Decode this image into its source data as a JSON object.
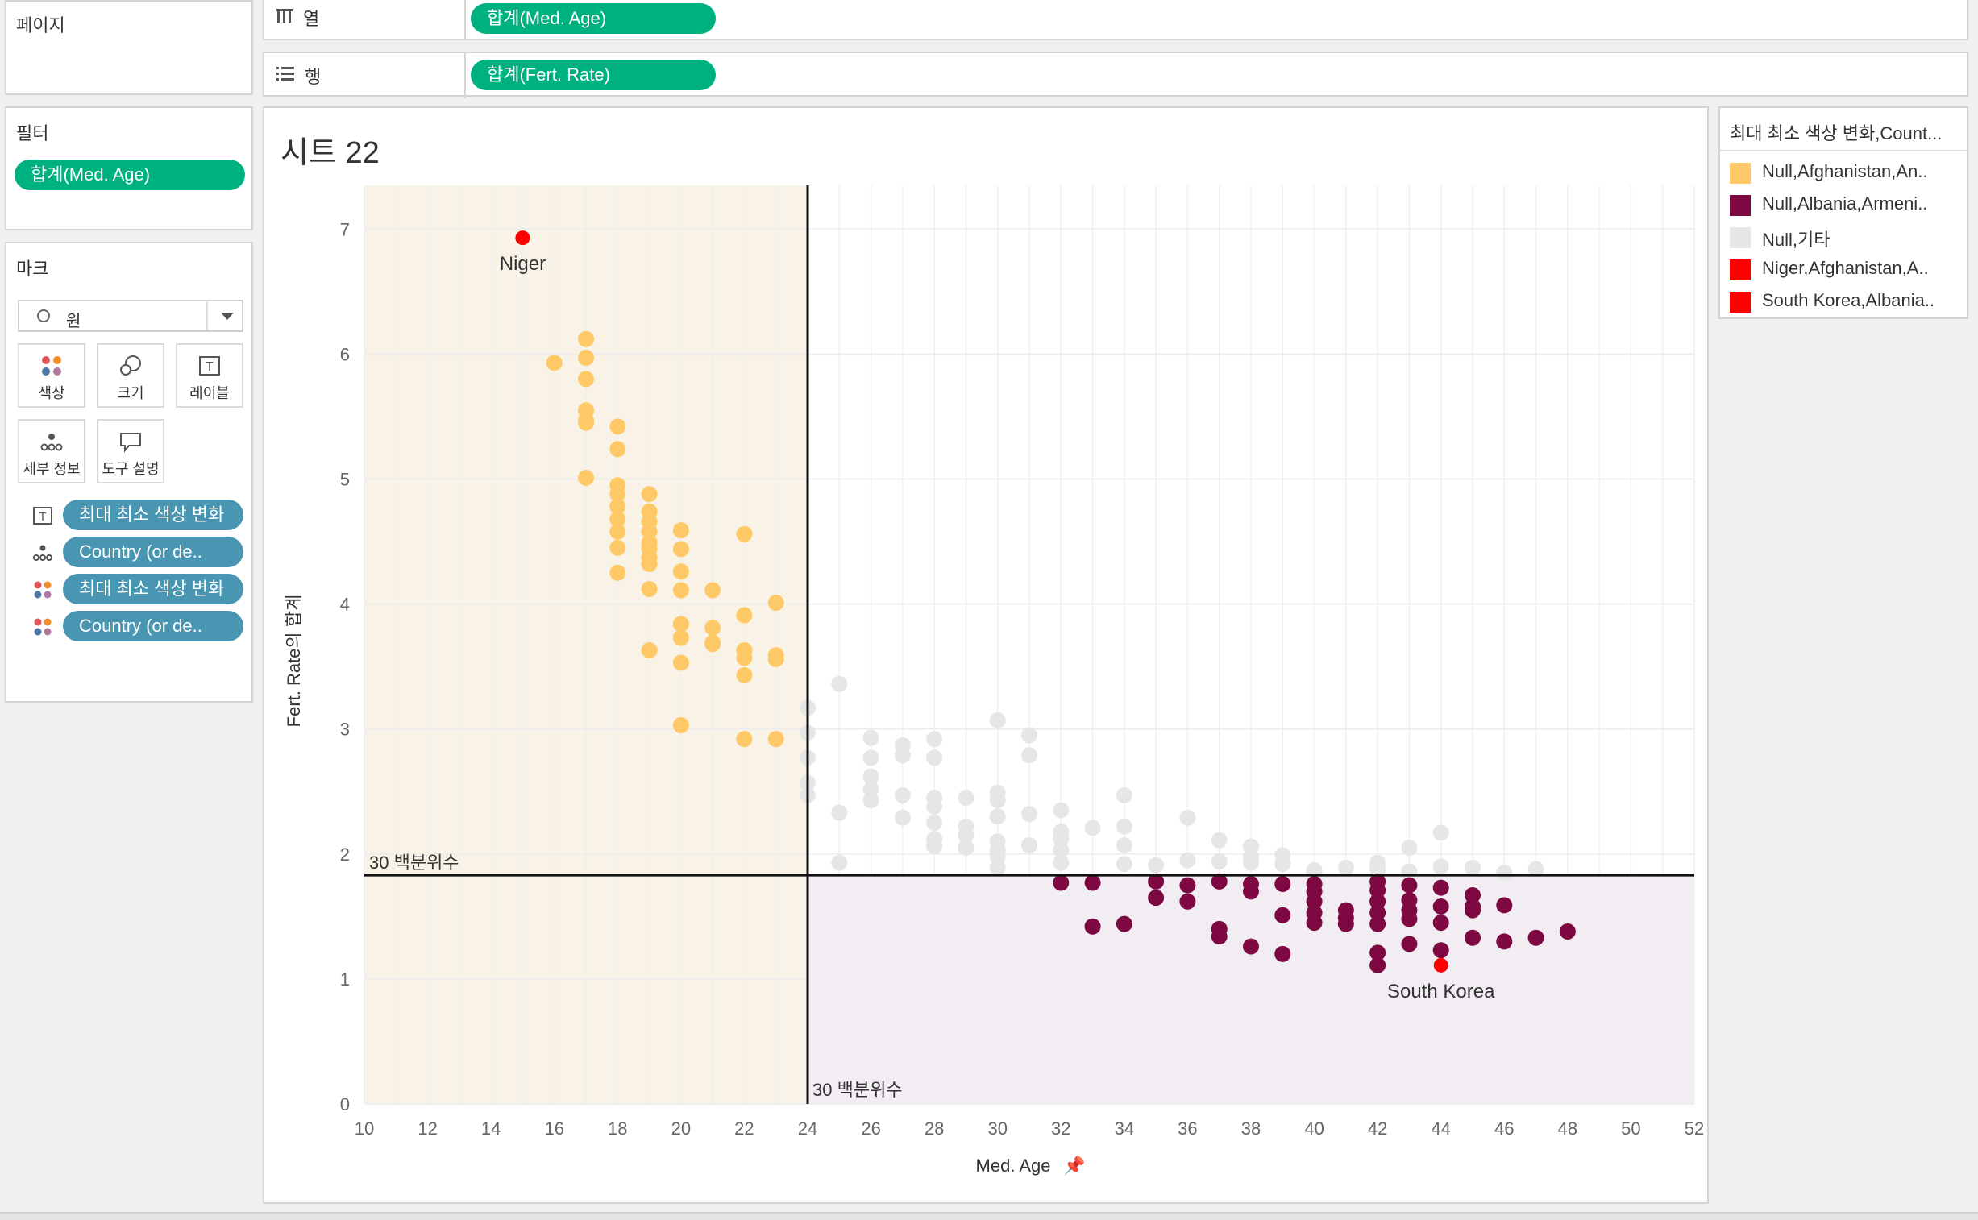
{
  "panels": {
    "pages": "페이지",
    "filters": "필터",
    "marks": "마크"
  },
  "shelves": {
    "columns_label": "열",
    "rows_label": "행",
    "columns_pill": "합계(Med. Age)",
    "rows_pill": "합계(Fert. Rate)"
  },
  "filter_pill": "합계(Med. Age)",
  "marks": {
    "type_label": "원",
    "buttons": {
      "color": "색상",
      "size": "크기",
      "label": "레이블",
      "detail": "세부 정보",
      "tooltip": "도구 설명"
    },
    "fields": [
      {
        "icon": "label-icon",
        "text": "최대 최소 색상 변화"
      },
      {
        "icon": "detail-icon",
        "text": "Country (or de.."
      },
      {
        "icon": "color-icon",
        "text": "최대 최소 색상 변화"
      },
      {
        "icon": "color-icon",
        "text": "Country (or de.."
      }
    ]
  },
  "sheet_title": "시트 22",
  "legend": {
    "title": "최대 최소 색상 변화,Count...",
    "items": [
      {
        "label": "Null,Afghanistan,An..",
        "color": "#fec966"
      },
      {
        "label": "Null,Albania,Armeni..",
        "color": "#7e0842"
      },
      {
        "label": "Null,기타",
        "color": "#e6e6e6"
      },
      {
        "label": "Niger,Afghanistan,A..",
        "color": "#ff0000"
      },
      {
        "label": "South Korea,Albania..",
        "color": "#ff0000"
      }
    ]
  },
  "chart_data": {
    "type": "scatter",
    "xlabel": "Med. Age",
    "ylabel": "Fert. Rate의 합계",
    "xlim": [
      10,
      52
    ],
    "ylim": [
      0,
      7
    ],
    "x_ticks": [
      10,
      12,
      14,
      16,
      18,
      20,
      22,
      24,
      26,
      28,
      30,
      32,
      34,
      36,
      38,
      40,
      42,
      44,
      46,
      48,
      50,
      52
    ],
    "y_ticks": [
      0,
      1,
      2,
      3,
      4,
      5,
      6,
      7
    ],
    "reference_lines": [
      {
        "axis": "x",
        "value": 24,
        "label": "30 백분위수"
      },
      {
        "axis": "y",
        "value": 1.83,
        "label": "30 백분위수"
      }
    ],
    "shaded_regions": [
      {
        "x": [
          10,
          24
        ],
        "y": [
          0,
          7.35
        ],
        "color": "#f8f3e6"
      },
      {
        "x": [
          24,
          52
        ],
        "y": [
          0,
          1.83
        ],
        "color": "#f2ecf3"
      }
    ],
    "series": [
      {
        "color": "#fec966",
        "x": [
          16,
          17,
          17,
          17,
          17,
          17,
          17,
          17,
          18,
          18,
          18,
          18,
          18,
          18,
          18,
          18,
          18,
          19,
          19,
          19,
          19,
          19,
          19,
          19,
          19,
          19,
          19,
          20,
          20,
          20,
          20,
          20,
          20,
          20,
          20,
          21,
          21,
          21,
          21,
          22,
          22,
          22,
          22,
          22,
          22,
          23,
          23,
          23,
          23
        ],
        "y": [
          5.93,
          6.12,
          5.97,
          5.8,
          5.55,
          5.47,
          5.45,
          5.01,
          5.42,
          5.24,
          4.95,
          4.88,
          4.78,
          4.68,
          4.58,
          4.45,
          4.25,
          4.88,
          4.74,
          4.66,
          4.58,
          4.49,
          4.44,
          4.37,
          4.32,
          4.12,
          3.63,
          4.59,
          4.44,
          4.26,
          4.11,
          3.84,
          3.73,
          3.53,
          3.03,
          4.11,
          3.81,
          3.69,
          3.68,
          4.56,
          3.91,
          3.63,
          3.57,
          3.43,
          2.92,
          4.01,
          3.59,
          3.56,
          2.92
        ]
      },
      {
        "color": "#e6e6e6",
        "x": [
          24,
          24,
          24,
          24,
          24,
          25,
          25,
          25,
          26,
          26,
          26,
          26,
          26,
          27,
          27,
          27,
          27,
          28,
          28,
          28,
          28,
          28,
          28,
          28,
          29,
          29,
          29,
          29,
          30,
          30,
          30,
          30,
          30,
          30,
          30,
          30,
          31,
          31,
          31,
          31,
          32,
          32,
          32,
          32,
          32,
          33,
          34,
          34,
          34,
          34,
          35,
          36,
          36,
          37,
          37,
          38,
          38,
          38,
          39,
          39,
          40,
          40,
          41,
          42,
          42,
          43,
          43,
          44,
          44,
          45,
          46,
          47
        ],
        "y": [
          3.17,
          2.97,
          2.77,
          2.57,
          2.47,
          3.36,
          2.33,
          1.93,
          2.93,
          2.77,
          2.62,
          2.52,
          2.43,
          2.87,
          2.79,
          2.47,
          2.29,
          2.92,
          2.77,
          2.45,
          2.38,
          2.25,
          2.12,
          2.06,
          2.45,
          2.22,
          2.15,
          2.05,
          3.07,
          2.49,
          2.43,
          2.3,
          2.1,
          2.03,
          1.98,
          1.89,
          2.95,
          2.79,
          2.32,
          2.07,
          2.35,
          2.18,
          2.12,
          2.03,
          1.93,
          2.21,
          2.47,
          2.22,
          2.07,
          1.92,
          1.91,
          2.29,
          1.95,
          2.11,
          1.94,
          2.06,
          1.98,
          1.93,
          1.99,
          1.92,
          1.87,
          1.85,
          1.89,
          1.93,
          1.88,
          2.05,
          1.86,
          2.17,
          1.9,
          1.89,
          1.85,
          1.88
        ]
      },
      {
        "color": "#7e0842",
        "x": [
          32,
          33,
          33,
          34,
          35,
          35,
          36,
          36,
          37,
          37,
          37,
          38,
          38,
          38,
          39,
          39,
          39,
          40,
          40,
          40,
          40,
          40,
          41,
          41,
          41,
          42,
          42,
          42,
          42,
          42,
          42,
          42,
          43,
          43,
          43,
          43,
          43,
          44,
          44,
          44,
          44,
          45,
          45,
          45,
          45,
          46,
          46,
          47,
          48
        ],
        "y": [
          1.77,
          1.77,
          1.42,
          1.44,
          1.78,
          1.65,
          1.75,
          1.62,
          1.78,
          1.4,
          1.34,
          1.76,
          1.7,
          1.26,
          1.76,
          1.51,
          1.2,
          1.76,
          1.7,
          1.62,
          1.53,
          1.45,
          1.55,
          1.49,
          1.44,
          1.78,
          1.71,
          1.62,
          1.53,
          1.44,
          1.21,
          1.11,
          1.75,
          1.63,
          1.55,
          1.48,
          1.28,
          1.73,
          1.45,
          1.23,
          1.58,
          1.67,
          1.58,
          1.55,
          1.33,
          1.59,
          1.3,
          1.33,
          1.38
        ]
      },
      {
        "name": "Niger",
        "color": "#ff0000",
        "x": [
          15
        ],
        "y": [
          6.93
        ],
        "label": "Niger"
      },
      {
        "name": "South Korea",
        "color": "#ff0000",
        "x": [
          44
        ],
        "y": [
          1.11
        ],
        "label": "South Korea"
      }
    ]
  }
}
